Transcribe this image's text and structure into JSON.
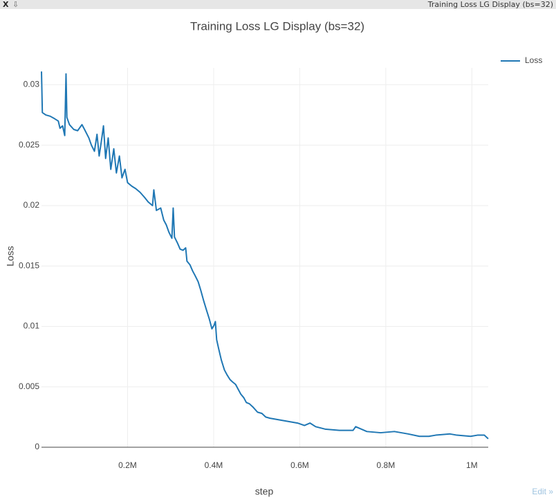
{
  "window": {
    "close": "X",
    "download": "⇩",
    "title": "Training Loss LG Display (bs=32)"
  },
  "edit_link": "Edit »",
  "chart_data": {
    "type": "line",
    "title": "Training Loss LG Display (bs=32)",
    "x_label": "step",
    "y_label": "Loss",
    "x": [
      0,
      2000,
      10000,
      20000,
      30000,
      39000,
      43000,
      49000,
      54000,
      57000,
      59000,
      65000,
      75000,
      84000,
      94000,
      100000,
      110000,
      116000,
      123000,
      129000,
      134000,
      139000,
      144000,
      149000,
      155000,
      161000,
      168000,
      174000,
      181000,
      187000,
      194000,
      200000,
      210000,
      219000,
      229000,
      239000,
      248000,
      258000,
      261000,
      267000,
      277000,
      284000,
      290000,
      296000,
      303000,
      306000,
      309000,
      316000,
      322000,
      329000,
      335000,
      338000,
      345000,
      351000,
      357000,
      364000,
      370000,
      377000,
      383000,
      390000,
      396000,
      401000,
      404000,
      407000,
      412000,
      418000,
      425000,
      431000,
      438000,
      444000,
      451000,
      457000,
      463000,
      470000,
      476000,
      483000,
      492000,
      502000,
      512000,
      521000,
      531000,
      547000,
      563000,
      579000,
      595000,
      611000,
      624000,
      637000,
      659000,
      692000,
      724000,
      730000,
      756000,
      788000,
      820000,
      852000,
      878000,
      900000,
      916000,
      949000,
      965000,
      997000,
      1013000,
      1029000,
      1038000
    ],
    "series": [
      {
        "name": "Loss",
        "color": "#1f77b4",
        "values": [
          0.0311,
          0.0277,
          0.0275,
          0.0274,
          0.0272,
          0.027,
          0.0264,
          0.0266,
          0.0258,
          0.0309,
          0.0273,
          0.0267,
          0.0263,
          0.0262,
          0.0267,
          0.0263,
          0.0256,
          0.025,
          0.0245,
          0.0259,
          0.0241,
          0.0253,
          0.0266,
          0.0239,
          0.0256,
          0.023,
          0.0247,
          0.0227,
          0.0241,
          0.0223,
          0.023,
          0.0219,
          0.0216,
          0.0214,
          0.0211,
          0.0207,
          0.0203,
          0.02,
          0.0213,
          0.0196,
          0.0198,
          0.0188,
          0.0184,
          0.0178,
          0.0173,
          0.0198,
          0.0174,
          0.0169,
          0.0164,
          0.0163,
          0.0165,
          0.0154,
          0.0151,
          0.0146,
          0.0142,
          0.0137,
          0.013,
          0.0121,
          0.0114,
          0.0106,
          0.0098,
          0.0101,
          0.0104,
          0.0089,
          0.0081,
          0.0072,
          0.0064,
          0.006,
          0.0056,
          0.0054,
          0.0052,
          0.0048,
          0.0044,
          0.0041,
          0.0037,
          0.0036,
          0.0033,
          0.0029,
          0.0028,
          0.0025,
          0.0024,
          0.0023,
          0.0022,
          0.0021,
          0.002,
          0.0018,
          0.002,
          0.0017,
          0.0015,
          0.0014,
          0.0014,
          0.0017,
          0.0013,
          0.0012,
          0.0013,
          0.0011,
          0.0009,
          0.0009,
          0.001,
          0.0011,
          0.001,
          0.0009,
          0.001,
          0.001,
          0.0007
        ]
      }
    ],
    "xlim": [
      0,
      1038000
    ],
    "ylim": [
      0,
      0.0314
    ],
    "xticks": [
      {
        "value": 200000,
        "label": "0.2M"
      },
      {
        "value": 400000,
        "label": "0.4M"
      },
      {
        "value": 600000,
        "label": "0.6M"
      },
      {
        "value": 800000,
        "label": "0.8M"
      },
      {
        "value": 1000000,
        "label": "1M"
      }
    ],
    "yticks": [
      0,
      0.005,
      0.01,
      0.015,
      0.02,
      0.025,
      0.03
    ],
    "grid": true,
    "legend": "top-right"
  }
}
